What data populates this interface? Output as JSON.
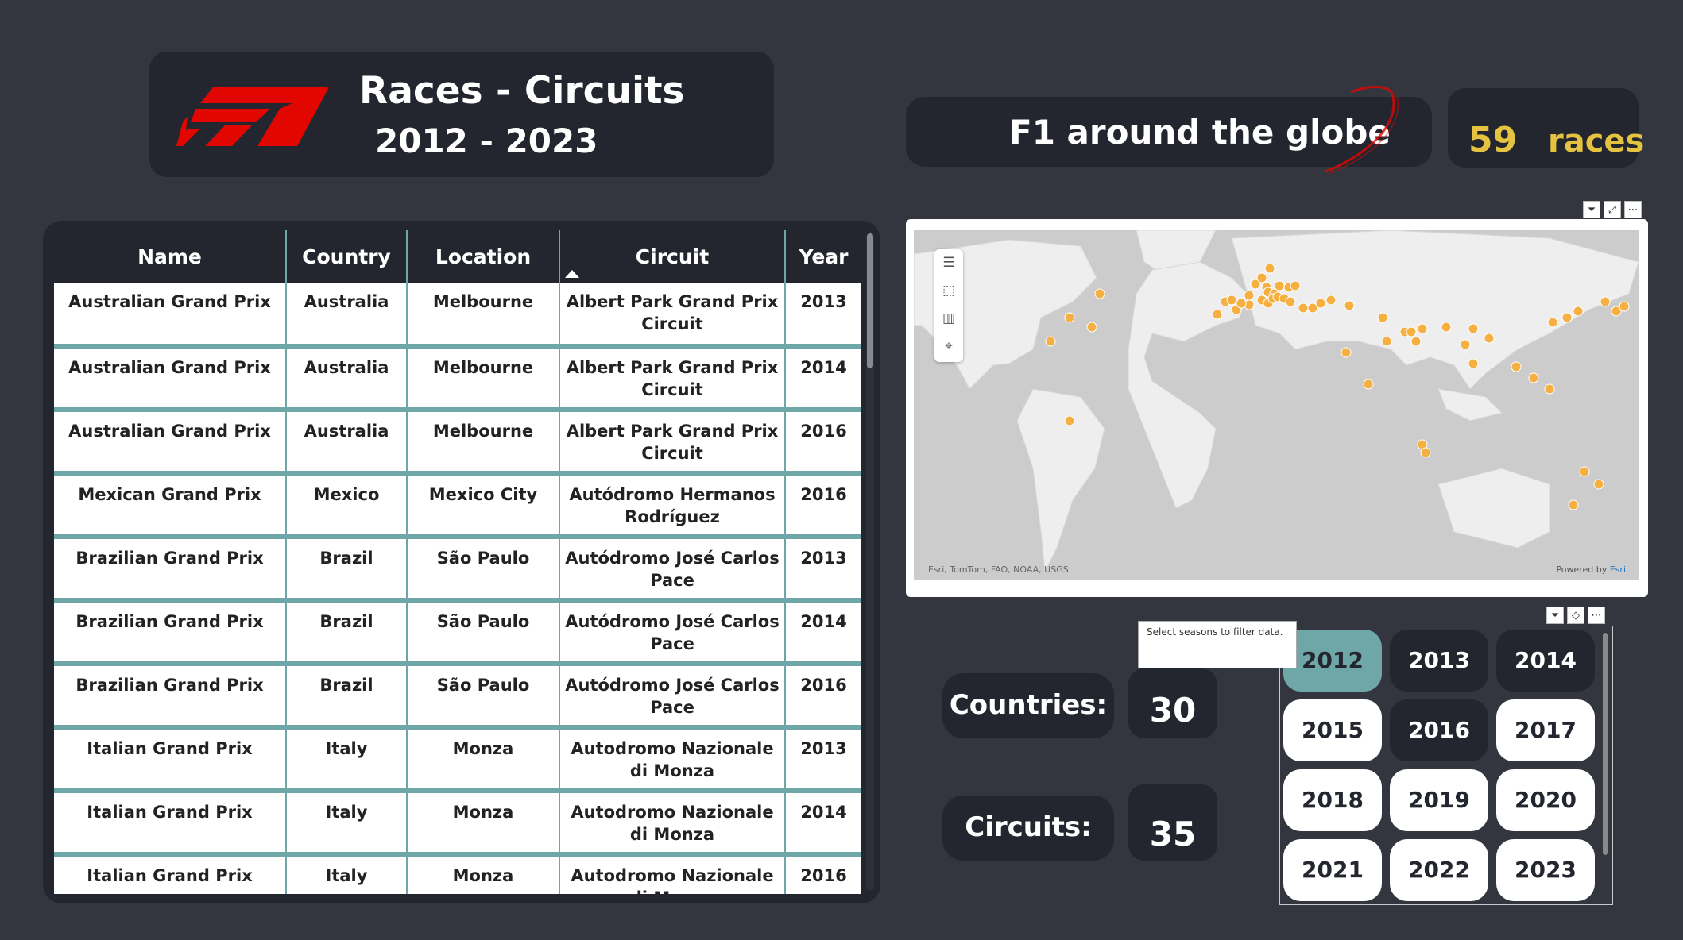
{
  "header": {
    "title": "Races - Circuits",
    "years": "2012 - 2023"
  },
  "globe": {
    "text": "F1 around the globe"
  },
  "races": {
    "count": "59",
    "label": "races"
  },
  "table": {
    "columns": [
      "Name",
      "Country",
      "Location",
      "Circuit",
      "Year"
    ],
    "rows": [
      [
        "Australian Grand Prix",
        "Australia",
        "Melbourne",
        "Albert Park Grand Prix Circuit",
        "2013"
      ],
      [
        "Australian Grand Prix",
        "Australia",
        "Melbourne",
        "Albert Park Grand Prix Circuit",
        "2014"
      ],
      [
        "Australian Grand Prix",
        "Australia",
        "Melbourne",
        "Albert Park Grand Prix Circuit",
        "2016"
      ],
      [
        "Mexican Grand Prix",
        "Mexico",
        "Mexico City",
        "Autódromo Hermanos Rodríguez",
        "2016"
      ],
      [
        "Brazilian Grand Prix",
        "Brazil",
        "São Paulo",
        "Autódromo José Carlos Pace",
        "2013"
      ],
      [
        "Brazilian Grand Prix",
        "Brazil",
        "São Paulo",
        "Autódromo José Carlos Pace",
        "2014"
      ],
      [
        "Brazilian Grand Prix",
        "Brazil",
        "São Paulo",
        "Autódromo José Carlos Pace",
        "2016"
      ],
      [
        "Italian Grand Prix",
        "Italy",
        "Monza",
        "Autodromo Nazionale di Monza",
        "2013"
      ],
      [
        "Italian Grand Prix",
        "Italy",
        "Monza",
        "Autodromo Nazionale di Monza",
        "2014"
      ],
      [
        "Italian Grand Prix",
        "Italy",
        "Monza",
        "Autodromo Nazionale di Monza",
        "2016"
      ]
    ]
  },
  "map": {
    "attribution": "Esri, TomTom, FAO, NOAA, USGS",
    "powered_prefix": "Powered by ",
    "powered_link": "Esri",
    "tools": [
      "menu-icon",
      "select-rect-icon",
      "chart-icon",
      "location-icon"
    ],
    "marker_color": "#f5b041"
  },
  "stats": {
    "countries_label": "Countries:",
    "countries_value": "30",
    "circuits_label": "Circuits:",
    "circuits_value": "35"
  },
  "slicer": {
    "tooltip": "Select seasons to filter data.",
    "years": [
      {
        "label": "2012",
        "state": "selected"
      },
      {
        "label": "2013",
        "state": "dark"
      },
      {
        "label": "2014",
        "state": "dark"
      },
      {
        "label": "2015",
        "state": "light"
      },
      {
        "label": "2016",
        "state": "dark"
      },
      {
        "label": "2017",
        "state": "light"
      },
      {
        "label": "2018",
        "state": "light"
      },
      {
        "label": "2019",
        "state": "light"
      },
      {
        "label": "2020",
        "state": "light"
      },
      {
        "label": "2021",
        "state": "light"
      },
      {
        "label": "2022",
        "state": "light"
      },
      {
        "label": "2023",
        "state": "light"
      }
    ]
  },
  "colors": {
    "accent": "#6fa6a8",
    "gold": "#e6c241",
    "f1_red": "#e10600",
    "card": "#23262e",
    "background": "#33363e"
  }
}
